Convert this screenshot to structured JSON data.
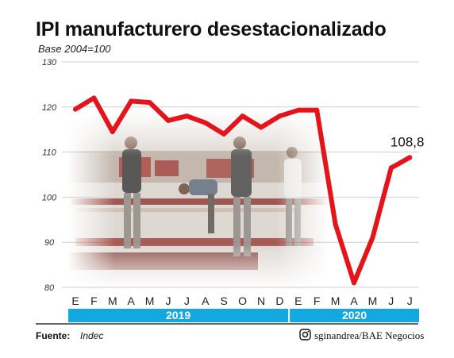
{
  "chart_data": {
    "type": "line",
    "title": "IPI manufacturero desestacionalizado",
    "subtitle": "Base 2004=100",
    "ylim": [
      80,
      130
    ],
    "yticks": [
      130,
      120,
      110,
      100,
      90,
      80
    ],
    "x": [
      "E",
      "F",
      "M",
      "A",
      "M",
      "J",
      "J",
      "A",
      "S",
      "O",
      "N",
      "D",
      "E",
      "F",
      "M",
      "A",
      "M",
      "J",
      "J"
    ],
    "years": [
      {
        "label": "2019",
        "start_index": 0,
        "end_index": 11
      },
      {
        "label": "2020",
        "start_index": 12,
        "end_index": 18
      }
    ],
    "series": [
      {
        "values": [
          119.5,
          122.0,
          114.5,
          121.3,
          121.0,
          117.0,
          118.0,
          116.5,
          114.0,
          118.0,
          115.5,
          118.0,
          119.3,
          119.3,
          94.0,
          81.0,
          91.0,
          106.5,
          108.8
        ],
        "color": "#e5141b"
      }
    ],
    "end_label": "108,8",
    "grid": true,
    "legend": "none"
  },
  "footer": {
    "source_label": "Fuente:",
    "source_value": "Indec",
    "credit": "sginandrea/BAE Negocios"
  },
  "colors": {
    "line": "#e5141b",
    "year_band": "#12a8e0",
    "grid": "#cfcfcf",
    "rule": "#333333"
  }
}
